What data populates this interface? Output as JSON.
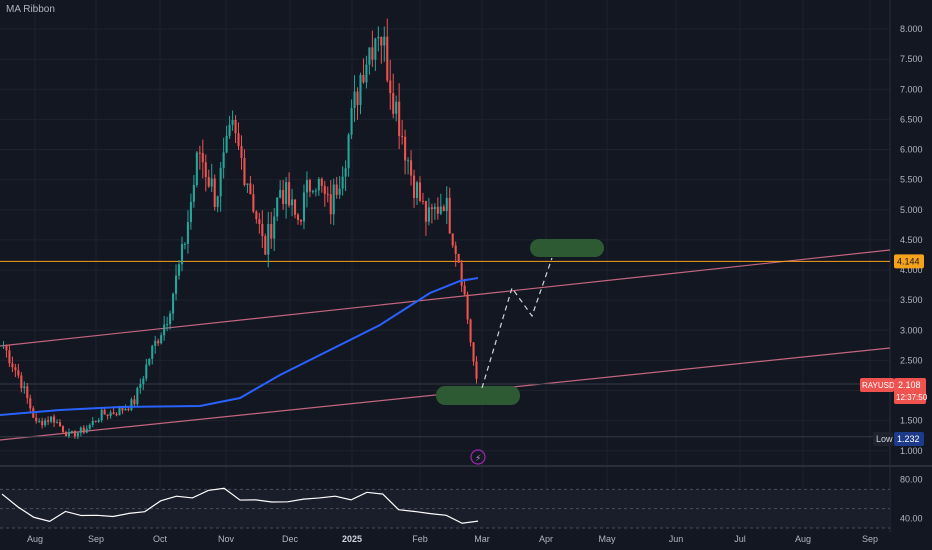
{
  "indicator_label": "MA Ribbon",
  "colors": {
    "background": "#131722",
    "up": "#26a69a",
    "down": "#ef5350",
    "ma": "#2962ff",
    "channel": "#c2657f",
    "level": "#f7a21b",
    "zone": "#2e5a33",
    "rsi": "#ffffff"
  },
  "chart_data": {
    "type": "candlestick",
    "symbol": "RAYUSDT",
    "y_axis": {
      "min": 0.75,
      "max": 8.5,
      "ticks": [
        "8.000",
        "7.500",
        "7.000",
        "6.500",
        "6.000",
        "5.500",
        "5.000",
        "4.500",
        "4.000",
        "3.500",
        "3.000",
        "2.500",
        "2.000",
        "1.500",
        "1.000"
      ]
    },
    "x_axis": {
      "ticks": [
        "Aug",
        "Sep",
        "Oct",
        "Nov",
        "Dec",
        "2025",
        "Feb",
        "Mar",
        "Apr",
        "May",
        "Jun",
        "Jul",
        "Aug",
        "Sep"
      ]
    },
    "price_path": [
      [
        "Aug",
        2.75
      ],
      [
        "Aug",
        2.2
      ],
      [
        "Aug",
        1.45
      ],
      [
        "Sep",
        1.55
      ],
      [
        "Sep",
        1.25
      ],
      [
        "Sep",
        1.35
      ],
      [
        "Oct",
        1.6
      ],
      [
        "Oct",
        1.65
      ],
      [
        "Oct",
        1.8
      ],
      [
        "Oct",
        2.6
      ],
      [
        "Nov",
        3.2
      ],
      [
        "Nov",
        4.3
      ],
      [
        "Nov",
        6.0
      ],
      [
        "Nov",
        5.2
      ],
      [
        "Nov",
        6.3
      ],
      [
        "Dec",
        5.5
      ],
      [
        "Dec",
        4.3
      ],
      [
        "Dec",
        5.4
      ],
      [
        "Dec",
        4.8
      ],
      [
        "2025",
        5.6
      ],
      [
        "2025",
        5.0
      ],
      [
        "2025",
        6.0
      ],
      [
        "2025",
        7.4
      ],
      [
        "Feb",
        8.1
      ],
      [
        "Feb",
        6.8
      ],
      [
        "Feb",
        5.6
      ],
      [
        "Feb",
        4.8
      ],
      [
        "Feb",
        5.2
      ],
      [
        "Feb",
        4.1
      ],
      [
        "Mar",
        2.108
      ]
    ],
    "moving_average": {
      "points": [
        [
          "Aug",
          1.6
        ],
        [
          "Sep",
          1.7
        ],
        [
          "Oct",
          1.8
        ],
        [
          "Oct",
          1.85
        ],
        [
          "Nov",
          2.2
        ],
        [
          "Nov",
          2.5
        ],
        [
          "Dec",
          2.8
        ],
        [
          "2025",
          3.2
        ],
        [
          "Feb",
          3.6
        ],
        [
          "Feb",
          3.88
        ]
      ]
    },
    "horizontal_level": 4.144,
    "current_price": {
      "label": "RAYUSDT",
      "value": "2.108",
      "countdown": "12:37:50"
    },
    "low": {
      "label": "Low",
      "value": "1.232"
    },
    "rsi": {
      "ticks": [
        "80.00",
        "40.00"
      ],
      "values": [
        62,
        55,
        38,
        40,
        44,
        46,
        40,
        45,
        42,
        50,
        55,
        66,
        58,
        72,
        68,
        62,
        56,
        60,
        54,
        63,
        58,
        66,
        56,
        70,
        62,
        52,
        44,
        48,
        40,
        38,
        34
      ]
    }
  }
}
